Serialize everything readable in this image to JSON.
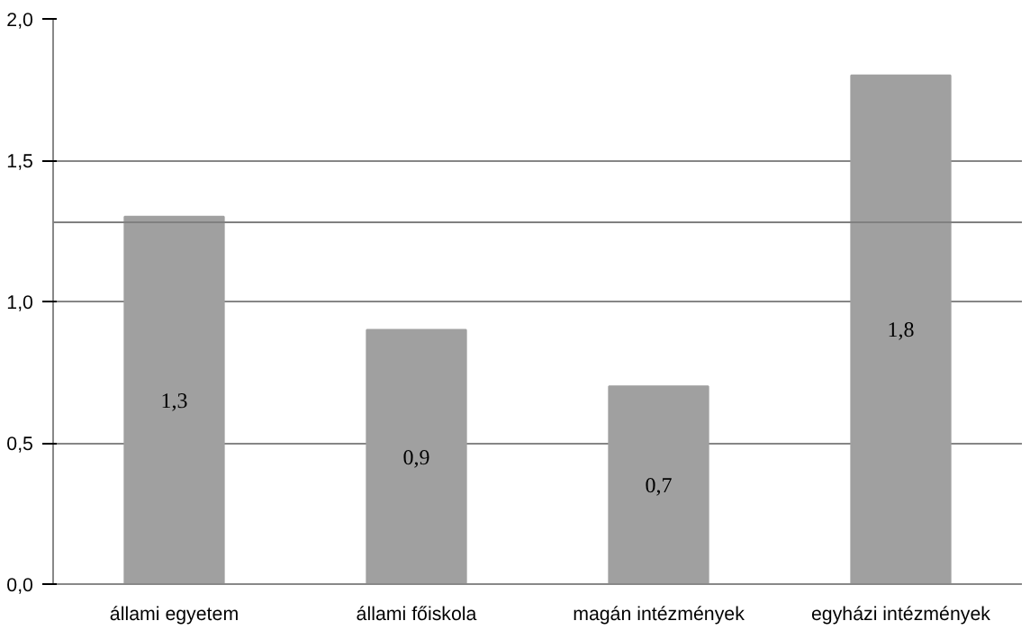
{
  "chart_data": {
    "type": "bar",
    "categories": [
      "állami egyetem",
      "állami főiskola",
      "magán intézmények",
      "egyházi intézmények"
    ],
    "values": [
      1.3,
      0.9,
      0.7,
      1.8
    ],
    "color": "#a0a0a0",
    "value_labels": [
      "1,3",
      "0,9",
      "0,7",
      "1,8"
    ],
    "ylim": [
      0,
      2
    ],
    "yticks": [
      {
        "value": 0,
        "label": "0,0"
      },
      {
        "value": 0.5,
        "label": "0,5"
      },
      {
        "value": 1,
        "label": "1,0"
      },
      {
        "value": 1.5,
        "label": "1,5"
      },
      {
        "value": 2,
        "label": "2,0"
      }
    ],
    "grid": "y",
    "ref_lines": [
      {
        "axis": "y",
        "value": 1.28,
        "color": "#808080"
      }
    ]
  }
}
